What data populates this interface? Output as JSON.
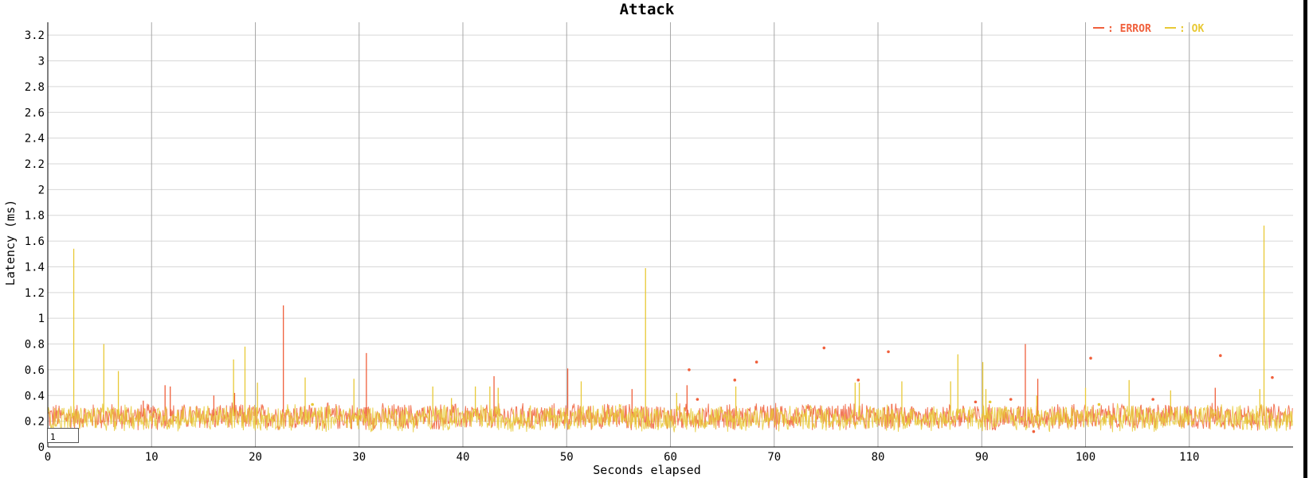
{
  "chart_data": {
    "type": "line",
    "title": "Attack",
    "xlabel": "Seconds elapsed",
    "ylabel": "Latency (ms)",
    "xlim": [
      0,
      120
    ],
    "ylim": [
      0,
      3.3
    ],
    "x_ticks": [
      0,
      10,
      20,
      30,
      40,
      50,
      60,
      70,
      80,
      90,
      100,
      110
    ],
    "y_ticks": [
      0,
      0.2,
      0.4,
      0.6,
      0.8,
      1,
      1.2,
      1.4,
      1.6,
      1.8,
      2,
      2.2,
      2.4,
      2.6,
      2.8,
      3,
      3.2
    ],
    "grid": true,
    "legend_position": "top-right",
    "baseline_range": [
      0.12,
      0.35
    ],
    "series": [
      {
        "name": "ERROR",
        "legend_text": ": ERROR",
        "color": "#f0603c",
        "spikes": [
          {
            "x": 9.2,
            "y": 0.36
          },
          {
            "x": 11.3,
            "y": 0.48
          },
          {
            "x": 11.8,
            "y": 0.47
          },
          {
            "x": 16.0,
            "y": 0.4
          },
          {
            "x": 18.0,
            "y": 0.42
          },
          {
            "x": 22.7,
            "y": 1.1
          },
          {
            "x": 30.7,
            "y": 0.73
          },
          {
            "x": 43.0,
            "y": 0.55
          },
          {
            "x": 50.1,
            "y": 0.61
          },
          {
            "x": 56.3,
            "y": 0.45
          },
          {
            "x": 61.6,
            "y": 0.48
          },
          {
            "x": 94.2,
            "y": 0.8
          },
          {
            "x": 95.4,
            "y": 0.53
          },
          {
            "x": 112.5,
            "y": 0.46
          }
        ],
        "points": [
          {
            "x": 61.8,
            "y": 0.6
          },
          {
            "x": 62.6,
            "y": 0.37
          },
          {
            "x": 66.2,
            "y": 0.52
          },
          {
            "x": 68.3,
            "y": 0.66
          },
          {
            "x": 74.8,
            "y": 0.77
          },
          {
            "x": 78.1,
            "y": 0.52
          },
          {
            "x": 81.0,
            "y": 0.74
          },
          {
            "x": 92.8,
            "y": 0.37
          },
          {
            "x": 95.0,
            "y": 0.12
          },
          {
            "x": 100.5,
            "y": 0.69
          },
          {
            "x": 113.0,
            "y": 0.71
          },
          {
            "x": 118.0,
            "y": 0.54
          },
          {
            "x": 106.5,
            "y": 0.37
          },
          {
            "x": 89.4,
            "y": 0.35
          }
        ]
      },
      {
        "name": "OK",
        "legend_text": ": OK",
        "color": "#e8c936",
        "spikes": [
          {
            "x": 2.5,
            "y": 1.54
          },
          {
            "x": 5.4,
            "y": 0.8
          },
          {
            "x": 6.8,
            "y": 0.59
          },
          {
            "x": 17.9,
            "y": 0.68
          },
          {
            "x": 19.0,
            "y": 0.78
          },
          {
            "x": 20.2,
            "y": 0.5
          },
          {
            "x": 24.8,
            "y": 0.54
          },
          {
            "x": 29.5,
            "y": 0.53
          },
          {
            "x": 37.1,
            "y": 0.47
          },
          {
            "x": 38.9,
            "y": 0.38
          },
          {
            "x": 41.2,
            "y": 0.47
          },
          {
            "x": 42.6,
            "y": 0.47
          },
          {
            "x": 43.4,
            "y": 0.46
          },
          {
            "x": 51.4,
            "y": 0.51
          },
          {
            "x": 57.6,
            "y": 1.39
          },
          {
            "x": 60.6,
            "y": 0.42
          },
          {
            "x": 66.3,
            "y": 0.47
          },
          {
            "x": 77.8,
            "y": 0.5
          },
          {
            "x": 78.2,
            "y": 0.5
          },
          {
            "x": 82.3,
            "y": 0.51
          },
          {
            "x": 87.0,
            "y": 0.51
          },
          {
            "x": 87.7,
            "y": 0.72
          },
          {
            "x": 90.1,
            "y": 0.66
          },
          {
            "x": 90.4,
            "y": 0.45
          },
          {
            "x": 95.3,
            "y": 0.4
          },
          {
            "x": 100.0,
            "y": 0.46
          },
          {
            "x": 104.2,
            "y": 0.52
          },
          {
            "x": 108.2,
            "y": 0.44
          },
          {
            "x": 116.8,
            "y": 0.45
          },
          {
            "x": 117.2,
            "y": 1.72
          }
        ],
        "points": [
          {
            "x": 25.5,
            "y": 0.33
          },
          {
            "x": 90.8,
            "y": 0.35
          },
          {
            "x": 101.3,
            "y": 0.33
          }
        ]
      }
    ]
  },
  "roller": {
    "value": "1"
  }
}
